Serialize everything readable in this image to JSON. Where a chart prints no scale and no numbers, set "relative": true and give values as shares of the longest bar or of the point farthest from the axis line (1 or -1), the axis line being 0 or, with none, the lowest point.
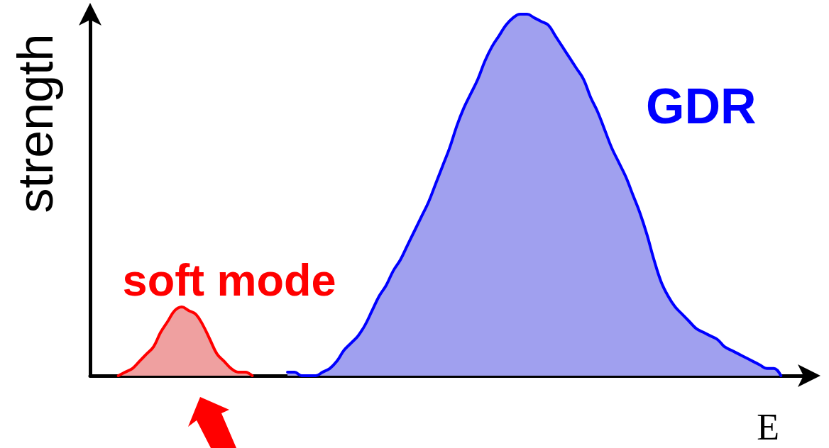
{
  "chart_data": {
    "type": "area",
    "relative": true,
    "xlabel": "E",
    "ylabel": "strength",
    "categories": [
      null,
      null,
      null,
      null,
      null,
      null,
      null,
      null,
      null,
      null,
      null,
      null,
      null,
      null,
      null,
      null,
      null,
      null,
      null,
      null,
      null,
      null,
      null,
      null,
      null,
      null,
      null,
      null,
      null,
      null,
      null,
      null,
      null,
      null,
      null,
      null,
      null,
      null,
      null,
      null,
      null,
      null,
      null,
      null,
      null,
      null,
      null,
      null,
      null,
      null,
      null,
      null,
      null,
      null,
      null,
      null,
      null,
      null,
      null,
      null,
      null,
      null,
      null,
      null,
      null,
      null,
      null,
      null,
      null,
      null,
      null,
      null,
      null,
      null,
      null,
      null,
      null,
      null,
      null,
      null,
      null,
      null,
      null,
      null,
      null,
      null,
      null,
      null,
      null,
      null,
      null,
      null,
      null,
      null,
      null,
      null,
      null,
      null,
      null,
      null,
      null,
      null,
      null
    ],
    "series": [
      {
        "name": "soft mode",
        "color": "#ff0000",
        "values": [
          null,
          null,
          null,
          null,
          0,
          0.01,
          0.02,
          0.04,
          0.06,
          0.08,
          0.12,
          0.15,
          0.18,
          0.19,
          0.18,
          0.17,
          0.14,
          0.1,
          0.06,
          0.04,
          0.02,
          0.01,
          0.01,
          0,
          null,
          null,
          null,
          null,
          null,
          null,
          null,
          null,
          null,
          null,
          null,
          null,
          null,
          null,
          null,
          null,
          null,
          null,
          null,
          null,
          null,
          null,
          null,
          null,
          null,
          null,
          null,
          null,
          null,
          null,
          null,
          null,
          null,
          null,
          null,
          null,
          null,
          null,
          null,
          null,
          null,
          null,
          null,
          null,
          null,
          null,
          null,
          null,
          null,
          null,
          null,
          null,
          null,
          null,
          null,
          null,
          null,
          null,
          null,
          null,
          null,
          null,
          null,
          null,
          null,
          null,
          null,
          null,
          null,
          null,
          null,
          null,
          null,
          null,
          null,
          null,
          null,
          null,
          null
        ]
      },
      {
        "name": "GDR",
        "color": "#0000ff",
        "values": [
          null,
          null,
          null,
          null,
          null,
          null,
          null,
          null,
          null,
          null,
          null,
          null,
          null,
          null,
          null,
          null,
          null,
          null,
          null,
          null,
          null,
          null,
          null,
          null,
          null,
          null,
          null,
          null,
          0.01,
          0.01,
          0,
          0,
          0,
          0.01,
          0.02,
          0.04,
          0.07,
          0.09,
          0.11,
          0.14,
          0.18,
          0.22,
          0.25,
          0.29,
          0.32,
          0.36,
          0.4,
          0.44,
          0.48,
          0.53,
          0.58,
          0.63,
          0.69,
          0.74,
          0.78,
          0.82,
          0.87,
          0.91,
          0.94,
          0.97,
          0.99,
          1,
          1,
          0.99,
          0.98,
          0.97,
          0.94,
          0.91,
          0.88,
          0.85,
          0.82,
          0.77,
          0.73,
          0.68,
          0.63,
          0.59,
          0.55,
          0.5,
          0.45,
          0.39,
          0.32,
          0.26,
          0.22,
          0.19,
          0.17,
          0.15,
          0.13,
          0.12,
          0.11,
          0.1,
          0.08,
          0.07,
          0.06,
          0.05,
          0.04,
          0.03,
          0.02,
          0.02,
          0,
          null,
          null,
          null,
          null
        ]
      }
    ]
  }
}
